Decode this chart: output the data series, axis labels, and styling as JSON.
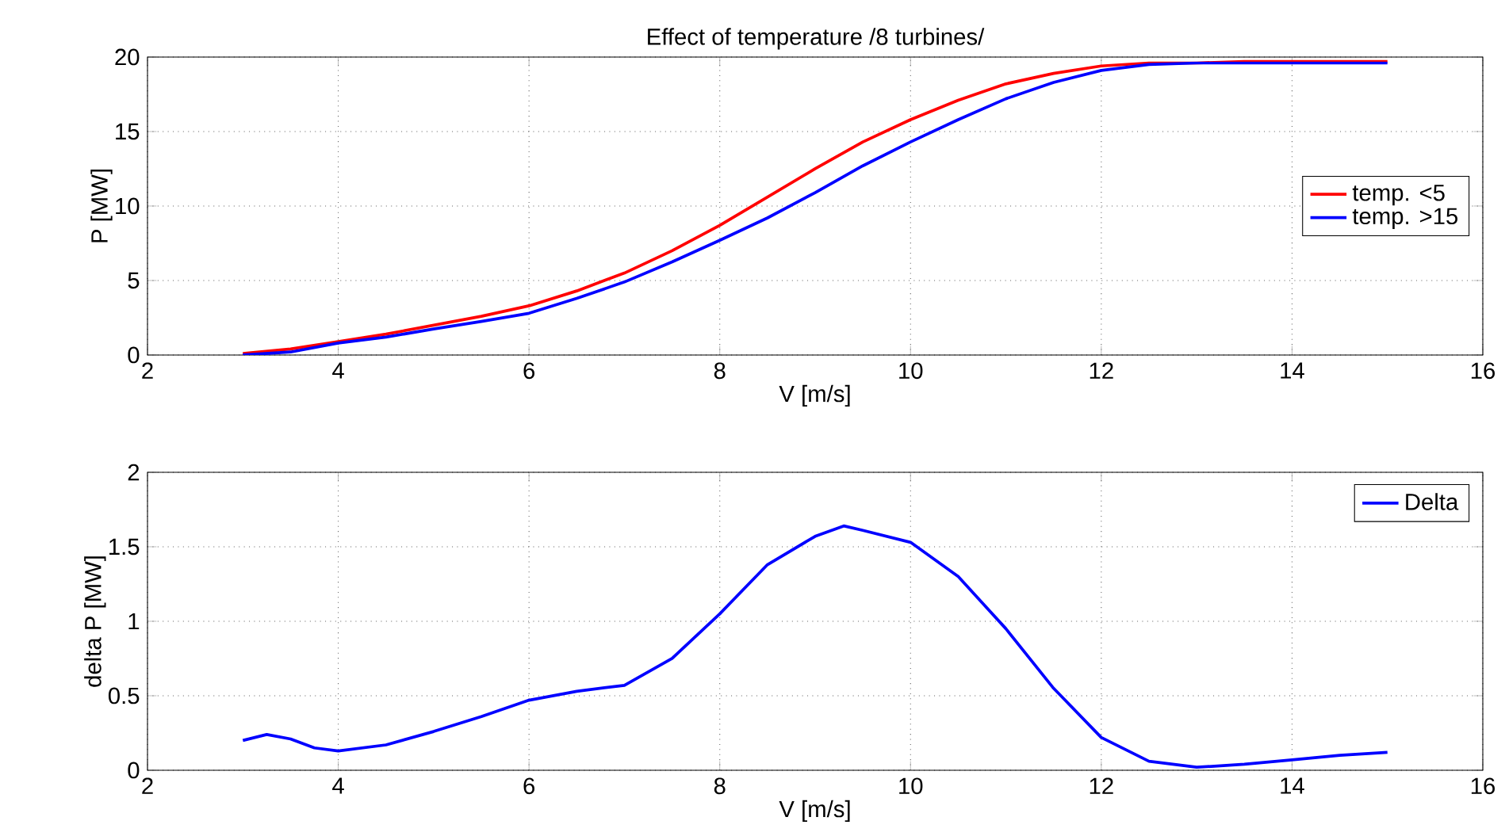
{
  "chart_data": [
    {
      "type": "line",
      "title": "Effect of temperature /8 turbines/",
      "xlabel": "V [m/s]",
      "ylabel": "P [MW]",
      "x": [
        3,
        3.5,
        4,
        4.5,
        5,
        5.5,
        6,
        6.5,
        7,
        7.5,
        8,
        8.5,
        9,
        9.5,
        10,
        10.5,
        11,
        11.5,
        12,
        12.5,
        13,
        13.5,
        14,
        14.5,
        15
      ],
      "series": [
        {
          "name": "temp. <5",
          "color": "#ff0000",
          "values": [
            0.1,
            0.4,
            0.9,
            1.4,
            2.0,
            2.6,
            3.3,
            4.3,
            5.5,
            7.0,
            8.7,
            10.6,
            12.5,
            14.3,
            15.8,
            17.1,
            18.2,
            18.9,
            19.4,
            19.6,
            19.6,
            19.7,
            19.7,
            19.7,
            19.7
          ]
        },
        {
          "name": "temp. >15",
          "color": "#0000ff",
          "values": [
            0,
            0.2,
            0.8,
            1.2,
            1.75,
            2.25,
            2.8,
            3.8,
            4.9,
            6.25,
            7.7,
            9.2,
            10.9,
            12.7,
            14.3,
            15.8,
            17.2,
            18.3,
            19.1,
            19.5,
            19.6,
            19.6,
            19.6,
            19.6,
            19.6
          ]
        }
      ],
      "xlim": [
        2,
        16
      ],
      "xticks": [
        2,
        4,
        6,
        8,
        10,
        12,
        14,
        16
      ],
      "ylim": [
        0,
        20
      ],
      "yticks": [
        0,
        5,
        10,
        15,
        20
      ],
      "grid": true,
      "legend": "right",
      "line_style": "solid"
    },
    {
      "type": "line",
      "xlabel": "V [m/s]",
      "ylabel": "delta P [MW]",
      "x": [
        3,
        3.25,
        3.5,
        3.75,
        4,
        4.5,
        5,
        5.5,
        6,
        6.5,
        7,
        7.5,
        8,
        8.5,
        9,
        9.3,
        9.5,
        10,
        10.5,
        11,
        11.5,
        12,
        12.5,
        13,
        13.5,
        14,
        14.5,
        15
      ],
      "series": [
        {
          "name": "Delta",
          "color": "#0000ff",
          "values": [
            0.2,
            0.24,
            0.21,
            0.15,
            0.13,
            0.17,
            0.26,
            0.36,
            0.47,
            0.53,
            0.57,
            0.75,
            1.05,
            1.38,
            1.57,
            1.64,
            1.61,
            1.53,
            1.3,
            0.95,
            0.55,
            0.22,
            0.06,
            0.02,
            0.04,
            0.07,
            0.1,
            0.12
          ]
        }
      ],
      "xlim": [
        2,
        16
      ],
      "xticks": [
        2,
        4,
        6,
        8,
        10,
        12,
        14,
        16
      ],
      "ylim": [
        0,
        2
      ],
      "yticks": [
        0,
        0.5,
        1,
        1.5,
        2
      ],
      "grid": true,
      "legend": "top right",
      "line_style": "solid"
    }
  ]
}
